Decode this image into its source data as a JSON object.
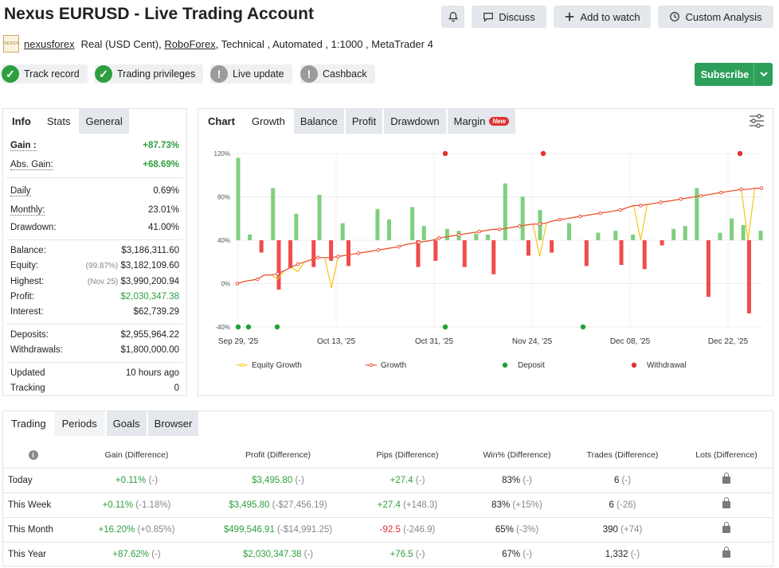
{
  "header": {
    "title": "Nexus EURUSD - Live Trading Account",
    "buttons": {
      "discuss": "Discuss",
      "watch": "Add to watch",
      "analysis": "Custom Analysis"
    }
  },
  "subline": {
    "logo_text": "NEXUS",
    "user": "nexusforex",
    "account_type": "Real (USD Cent),",
    "broker": "RoboForex",
    "details": ", Technical , Automated , 1:1000 , MetaTrader 4"
  },
  "badges": [
    {
      "label": "Track record",
      "status": "ok"
    },
    {
      "label": "Trading privileges",
      "status": "ok"
    },
    {
      "label": "Live update",
      "status": "na"
    },
    {
      "label": "Cashback",
      "status": "na"
    }
  ],
  "subscribe": {
    "label": "Subscribe"
  },
  "info": {
    "tabs": [
      "Info",
      "Stats",
      "General"
    ],
    "gain": {
      "label": "Gain :",
      "value": "+87.73%"
    },
    "abs_gain": {
      "label": "Abs. Gain:",
      "value": "+68.69%"
    },
    "daily": {
      "label": "Daily",
      "value": "0.69%"
    },
    "monthly": {
      "label": "Monthly:",
      "value": "23.01%"
    },
    "drawdown": {
      "label": "Drawdown:",
      "value": "41.00%"
    },
    "balance": {
      "label": "Balance:",
      "value": "$3,186,311.60"
    },
    "equity": {
      "label": "Equity:",
      "note": "(99.87%)",
      "value": "$3,182,109.60"
    },
    "highest": {
      "label": "Highest:",
      "note": "(Nov 25)",
      "value": "$3,990,200.94"
    },
    "profit": {
      "label": "Profit:",
      "value": "$2,030,347.38"
    },
    "interest": {
      "label": "Interest:",
      "value": "$62,739.29"
    },
    "deposits": {
      "label": "Deposits:",
      "value": "$2,955,964.22"
    },
    "withdrawals": {
      "label": "Withdrawals:",
      "value": "$1,800,000.00"
    },
    "updated": {
      "label": "Updated",
      "value": "10 hours ago"
    },
    "tracking": {
      "label": "Tracking",
      "value": "0"
    }
  },
  "chart_panel": {
    "tabs": [
      "Chart",
      "Growth",
      "Balance",
      "Profit",
      "Drawdown",
      "Margin"
    ],
    "new_badge": "New"
  },
  "chart_data": {
    "type": "line",
    "y_ticks": [
      "120%",
      "80%",
      "40%",
      "0%",
      "-40%"
    ],
    "x_ticks": [
      "Sep 29, '25",
      "Oct 13, '25",
      "Oct 31, '25",
      "Nov 24, '25",
      "Dec 08, '25",
      "Dec 22, '25"
    ],
    "legend": [
      "Equity Growth",
      "Growth",
      "Deposit",
      "Withdrawal"
    ],
    "colors": {
      "equity": "#f5c518",
      "growth": "#e8503a",
      "deposit": "#1aa33a",
      "withdrawal": "#e03131",
      "bar_pos": "#7fcf7f",
      "bar_neg": "#f04b4b"
    },
    "growth": [
      0,
      2,
      3,
      4,
      8,
      8,
      9,
      12,
      15,
      18,
      20,
      22,
      24,
      24,
      24,
      25,
      26,
      27,
      28,
      29,
      30,
      31,
      32,
      33,
      34,
      36,
      37,
      38,
      39,
      40,
      42,
      43,
      44,
      45,
      46,
      47,
      48,
      49,
      50,
      50,
      51,
      52,
      53,
      54,
      55,
      55,
      56,
      58,
      59,
      60,
      61,
      62,
      63,
      64,
      65,
      66,
      67,
      68,
      70,
      72,
      72,
      73,
      74,
      75,
      76,
      77,
      78,
      79,
      80,
      81,
      82,
      83,
      84,
      85,
      86,
      87,
      87,
      88,
      88
    ],
    "equity": [
      0,
      2,
      3,
      4,
      8,
      8,
      4,
      12,
      15,
      11,
      20,
      22,
      24,
      24,
      -4,
      25,
      26,
      27,
      28,
      29,
      30,
      31,
      32,
      33,
      34,
      36,
      37,
      38,
      39,
      40,
      42,
      43,
      44,
      45,
      46,
      47,
      48,
      49,
      50,
      50,
      51,
      52,
      53,
      54,
      55,
      25,
      56,
      58,
      59,
      60,
      61,
      62,
      63,
      64,
      65,
      66,
      67,
      68,
      70,
      72,
      40,
      73,
      74,
      75,
      76,
      77,
      78,
      79,
      80,
      81,
      82,
      83,
      84,
      85,
      86,
      87,
      40,
      88,
      88
    ],
    "bars": [
      87,
      0,
      6,
      0,
      -12,
      0,
      55,
      -48,
      0,
      -27,
      28,
      0,
      0,
      -26,
      48,
      0,
      -20,
      0,
      18,
      -25,
      0,
      0,
      0,
      0,
      33,
      0,
      22,
      0,
      0,
      0,
      35,
      -26,
      15,
      0,
      -20,
      0,
      12,
      0,
      10,
      -26,
      0,
      7,
      0,
      6,
      -33,
      0,
      60,
      0,
      0,
      46,
      -15,
      0,
      32,
      0,
      -12,
      0,
      0,
      18,
      0,
      0,
      -25,
      0,
      8,
      0,
      0,
      10,
      -24,
      0,
      6,
      0,
      -28,
      0,
      0,
      -5,
      0,
      12,
      0,
      15,
      0,
      55,
      0,
      -55,
      0,
      8,
      0,
      23,
      0,
      16,
      -71,
      0,
      10
    ],
    "deposits_idx": [
      0,
      1,
      3,
      21,
      37
    ],
    "withdrawals_idx": [
      21,
      31,
      50,
      77
    ]
  },
  "periods": {
    "tabs": [
      "Trading",
      "Periods",
      "Goals",
      "Browser"
    ],
    "columns": [
      "Gain (Difference)",
      "Profit (Difference)",
      "Pips (Difference)",
      "Win% (Difference)",
      "Trades (Difference)",
      "Lots (Difference)"
    ],
    "rows": [
      {
        "label": "Today",
        "gain": "+0.11%",
        "gain_d": "(-)",
        "profit": "$3,495.80",
        "profit_d": "(-)",
        "pips": "+27.4",
        "pips_d": "(-)",
        "win": "83%",
        "win_d": "(-)",
        "trades": "6",
        "trades_d": "(-)"
      },
      {
        "label": "This Week",
        "gain": "+0.11%",
        "gain_d": "(-1.18%)",
        "profit": "$3,495.80",
        "profit_d": "(-$27,456.19)",
        "pips": "+27.4",
        "pips_d": "(+148.3)",
        "win": "83%",
        "win_d": "(+15%)",
        "trades": "6",
        "trades_d": "(-26)"
      },
      {
        "label": "This Month",
        "gain": "+16.20%",
        "gain_d": "(+0.85%)",
        "profit": "$499,546.91",
        "profit_d": "(-$14,991.25)",
        "pips": "-92.5",
        "pips_d": "(-246.9)",
        "win": "65%",
        "win_d": "(-3%)",
        "trades": "390",
        "trades_d": "(+74)"
      },
      {
        "label": "This Year",
        "gain": "+87.62%",
        "gain_d": "(-)",
        "profit": "$2,030,347.38",
        "profit_d": "(-)",
        "pips": "+76.5",
        "pips_d": "(-)",
        "win": "67%",
        "win_d": "(-)",
        "trades": "1,332",
        "trades_d": "(-)"
      }
    ]
  }
}
